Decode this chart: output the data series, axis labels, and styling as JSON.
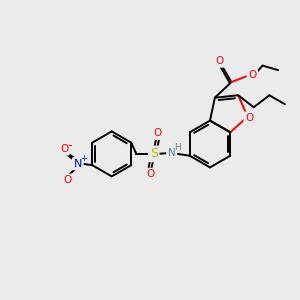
{
  "bg_color": "#ebebeb",
  "bond_color": "#000000",
  "bond_lw": 1.4,
  "atom_colors": {
    "O": "#ff0000",
    "N_blue": "#0000ff",
    "N_teal": "#4f8f8f",
    "S": "#bbbb00",
    "H": "#808080",
    "C": "#000000"
  },
  "figsize": [
    3.0,
    3.0
  ],
  "dpi": 100
}
